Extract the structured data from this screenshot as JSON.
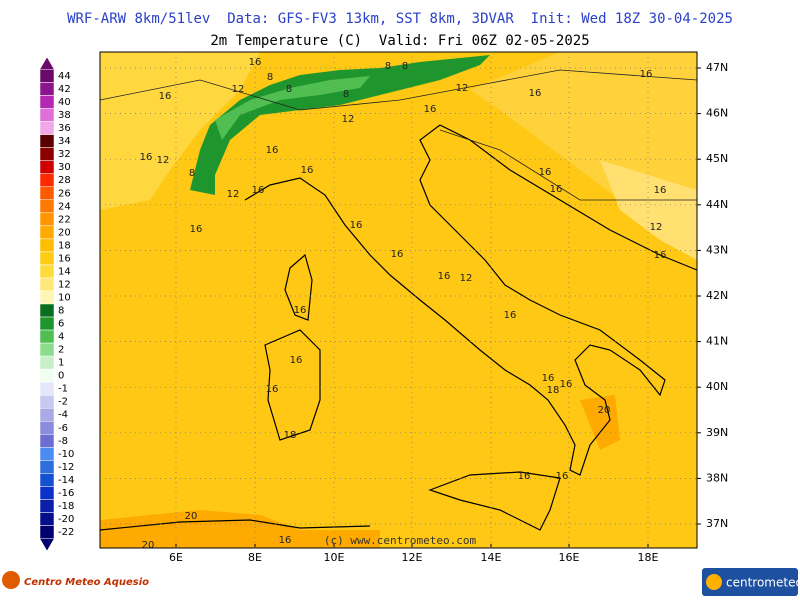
{
  "header": {
    "title": "WRF-ARW 8km/51lev  Data: GFS-FV3 13km, SST 8km, 3DVAR  Init: Wed 18Z 30-04-2025",
    "subtitle": "2m Temperature (C)  Valid: Fri 06Z 02-05-2025"
  },
  "legend": {
    "levels": [
      {
        "label": "44",
        "color": "#6a0a6a"
      },
      {
        "label": "42",
        "color": "#8c148c"
      },
      {
        "label": "40",
        "color": "#b428b4"
      },
      {
        "label": "38",
        "color": "#e070d8"
      },
      {
        "label": "36",
        "color": "#f0a8e8"
      },
      {
        "label": "34",
        "color": "#5a0000"
      },
      {
        "label": "32",
        "color": "#8a0000"
      },
      {
        "label": "30",
        "color": "#d00000"
      },
      {
        "label": "28",
        "color": "#ff2a00"
      },
      {
        "label": "26",
        "color": "#ff5a00"
      },
      {
        "label": "24",
        "color": "#ff7800"
      },
      {
        "label": "22",
        "color": "#ff9600"
      },
      {
        "label": "20",
        "color": "#ffaa00"
      },
      {
        "label": "18",
        "color": "#ffbe00"
      },
      {
        "label": "16",
        "color": "#ffcc14"
      },
      {
        "label": "14",
        "color": "#ffdc3c"
      },
      {
        "label": "12",
        "color": "#ffe878"
      },
      {
        "label": "10",
        "color": "#fff5b4"
      },
      {
        "label": "8",
        "color": "#0a6e1e"
      },
      {
        "label": "6",
        "color": "#1e962d"
      },
      {
        "label": "4",
        "color": "#50be50"
      },
      {
        "label": "2",
        "color": "#8cdc8c"
      },
      {
        "label": "1",
        "color": "#c8f0c8"
      },
      {
        "label": "0",
        "color": "#f0fff0"
      },
      {
        "label": "-1",
        "color": "#e6e6fa"
      },
      {
        "label": "-2",
        "color": "#c8c8f0"
      },
      {
        "label": "-4",
        "color": "#aaaae6"
      },
      {
        "label": "-6",
        "color": "#8c8cdc"
      },
      {
        "label": "-8",
        "color": "#6e6ed2"
      },
      {
        "label": "-10",
        "color": "#4b8cf0"
      },
      {
        "label": "-12",
        "color": "#2d6edc"
      },
      {
        "label": "-14",
        "color": "#1450d2"
      },
      {
        "label": "-16",
        "color": "#0a32c8"
      },
      {
        "label": "-18",
        "color": "#0a1eaa"
      },
      {
        "label": "-20",
        "color": "#050f8c"
      },
      {
        "label": "-22",
        "color": "#00006e"
      }
    ]
  },
  "map": {
    "lon_ticks": [
      "6E",
      "8E",
      "10E",
      "12E",
      "14E",
      "16E",
      "18E"
    ],
    "lat_ticks": [
      "47N",
      "46N",
      "45N",
      "44N",
      "43N",
      "42N",
      "41N",
      "40N",
      "39N",
      "38N",
      "37N"
    ],
    "contour_labels": [
      "16",
      "8",
      "12",
      "16",
      "8",
      "8",
      "8",
      "8",
      "12",
      "16",
      "16",
      "12",
      "16",
      "16",
      "16",
      "12",
      "8",
      "12",
      "16",
      "16",
      "16",
      "16",
      "16",
      "16",
      "16",
      "16",
      "12",
      "16",
      "16",
      "12",
      "16",
      "16",
      "16",
      "16",
      "16",
      "16",
      "18",
      "20",
      "18",
      "16",
      "16",
      "20",
      "20",
      "16"
    ]
  },
  "footer": {
    "copyright": "(c) www.centrometeo.com",
    "left_logo": "Centro Meteo Aquesio",
    "right_logo": "centrometeo"
  }
}
